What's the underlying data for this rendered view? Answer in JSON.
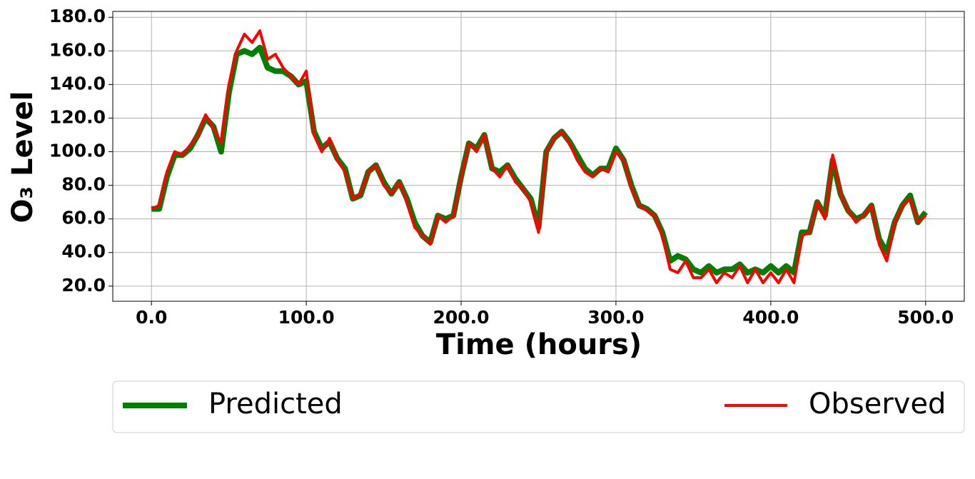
{
  "chart_data": {
    "type": "line",
    "x_label": "Time (hours)",
    "y_label": "O₃ Level",
    "x": [
      0,
      5,
      10,
      15,
      20,
      25,
      30,
      35,
      40,
      45,
      50,
      55,
      60,
      65,
      70,
      75,
      80,
      85,
      90,
      95,
      100,
      105,
      110,
      115,
      120,
      125,
      130,
      135,
      140,
      145,
      150,
      155,
      160,
      165,
      170,
      175,
      180,
      185,
      190,
      195,
      200,
      205,
      210,
      215,
      220,
      225,
      230,
      235,
      240,
      245,
      250,
      255,
      260,
      265,
      270,
      275,
      280,
      285,
      290,
      295,
      300,
      305,
      310,
      315,
      320,
      325,
      330,
      335,
      340,
      345,
      350,
      355,
      360,
      365,
      370,
      375,
      380,
      385,
      390,
      395,
      400,
      405,
      410,
      415,
      420,
      425,
      430,
      435,
      440,
      445,
      450,
      455,
      460,
      465,
      470,
      475,
      480,
      485,
      490,
      495,
      500
    ],
    "series": [
      {
        "name": "Predicted",
        "color": "#008000",
        "values": [
          66,
          66,
          85,
          98,
          98,
          102,
          110,
          120,
          115,
          100,
          135,
          158,
          160,
          158,
          162,
          150,
          148,
          148,
          145,
          140,
          142,
          112,
          102,
          106,
          96,
          90,
          72,
          74,
          88,
          92,
          82,
          75,
          82,
          72,
          58,
          50,
          46,
          62,
          60,
          62,
          85,
          105,
          102,
          110,
          90,
          88,
          92,
          84,
          78,
          72,
          55,
          100,
          108,
          112,
          106,
          98,
          90,
          86,
          90,
          90,
          102,
          95,
          80,
          68,
          66,
          62,
          52,
          35,
          38,
          36,
          30,
          28,
          32,
          28,
          30,
          30,
          33,
          28,
          30,
          28,
          32,
          28,
          32,
          28,
          52,
          52,
          70,
          62,
          95,
          75,
          65,
          60,
          62,
          68,
          48,
          40,
          58,
          68,
          74,
          58,
          64
        ]
      },
      {
        "name": "Observed",
        "color": "#ff0000",
        "values": [
          66,
          68,
          88,
          100,
          98,
          104,
          110,
          122,
          114,
          105,
          140,
          160,
          170,
          165,
          172,
          155,
          158,
          150,
          145,
          140,
          148,
          110,
          100,
          108,
          95,
          88,
          72,
          75,
          88,
          92,
          80,
          75,
          82,
          70,
          55,
          50,
          45,
          62,
          58,
          62,
          85,
          105,
          100,
          110,
          90,
          85,
          92,
          82,
          78,
          70,
          52,
          100,
          108,
          112,
          105,
          95,
          88,
          85,
          90,
          88,
          100,
          95,
          78,
          68,
          65,
          62,
          50,
          30,
          28,
          35,
          25,
          25,
          30,
          22,
          28,
          25,
          32,
          22,
          30,
          22,
          28,
          22,
          30,
          22,
          50,
          52,
          70,
          60,
          98,
          75,
          65,
          58,
          62,
          68,
          45,
          35,
          58,
          68,
          72,
          58,
          62
        ]
      }
    ],
    "xlim": [
      -25,
      525
    ],
    "ylim": [
      11,
      183.5
    ],
    "xticks": [
      {
        "value": 0,
        "label": "0.0"
      },
      {
        "value": 100,
        "label": "100.0"
      },
      {
        "value": 200,
        "label": "200.0"
      },
      {
        "value": 300,
        "label": "300.0"
      },
      {
        "value": 400,
        "label": "400.0"
      },
      {
        "value": 500,
        "label": "500.0"
      }
    ],
    "yticks": [
      {
        "value": 20,
        "label": "20.0"
      },
      {
        "value": 40,
        "label": "40.0"
      },
      {
        "value": 60,
        "label": "60.0"
      },
      {
        "value": 80,
        "label": "80.0"
      },
      {
        "value": 100,
        "label": "100.0"
      },
      {
        "value": 120,
        "label": "120.0"
      },
      {
        "value": 140,
        "label": "140.0"
      },
      {
        "value": 160,
        "label": "160.0"
      },
      {
        "value": 180,
        "label": "180.0"
      }
    ],
    "grid": true,
    "legend": "bottom"
  }
}
